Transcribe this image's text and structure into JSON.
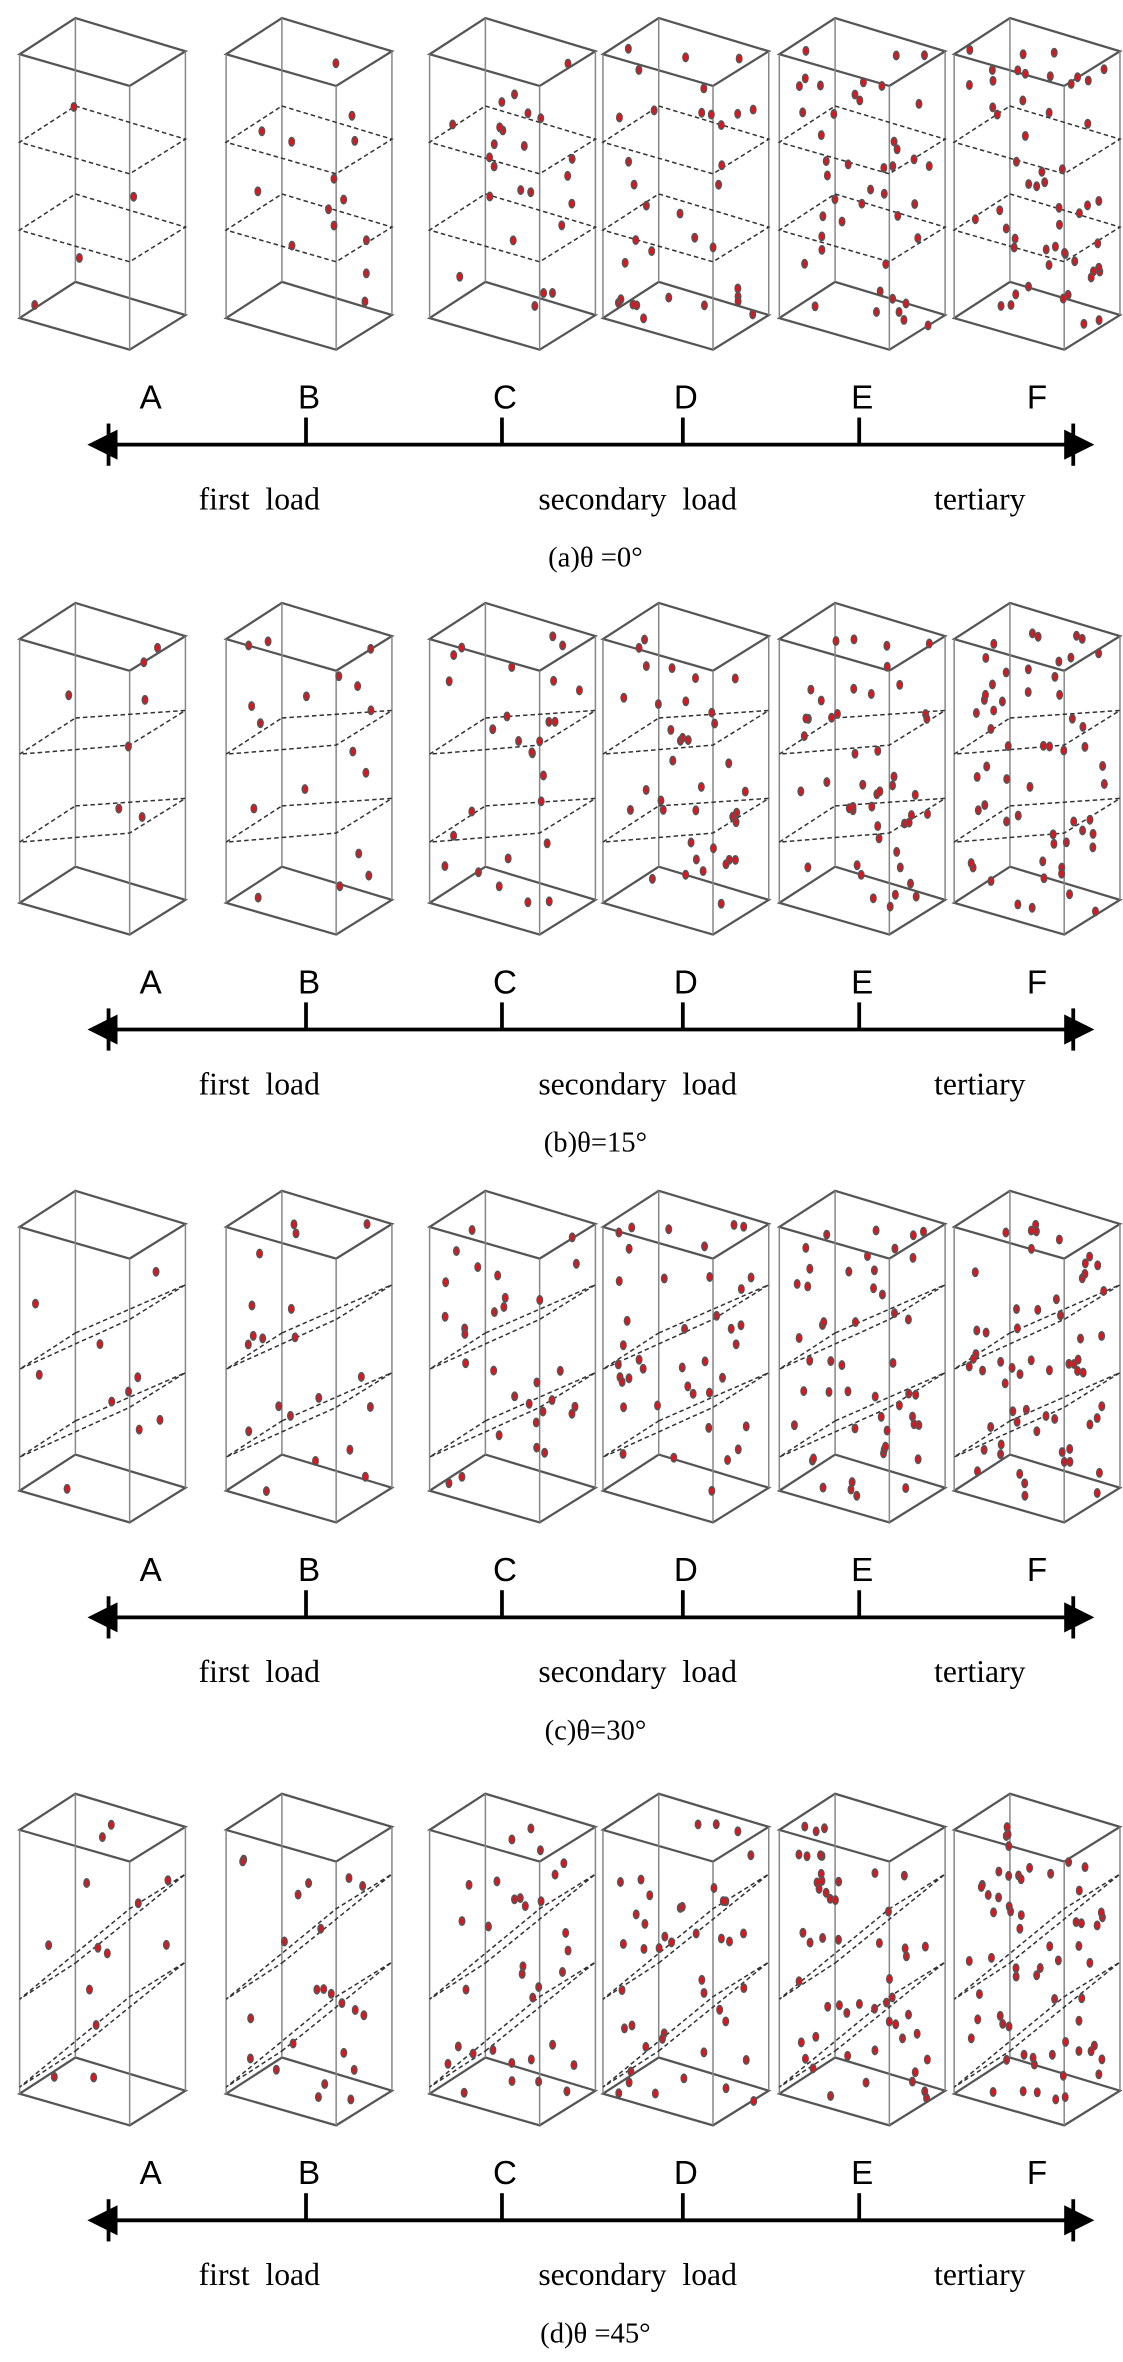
{
  "panels": [
    {
      "labels": [
        "A",
        "B",
        "C",
        "D",
        "E",
        "F"
      ],
      "stages": [
        "first  load",
        "secondary  load",
        "tertiary"
      ],
      "caption": "(a)θ =0°"
    },
    {
      "labels": [
        "A",
        "B",
        "C",
        "D",
        "E",
        "F"
      ],
      "stages": [
        "first  load",
        "secondary  load",
        "tertiary"
      ],
      "caption": "(b)θ=15°"
    },
    {
      "labels": [
        "A",
        "B",
        "C",
        "D",
        "E",
        "F"
      ],
      "stages": [
        "first  load",
        "secondary  load",
        "tertiary"
      ],
      "caption": "(c)θ=30°"
    },
    {
      "labels": [
        "A",
        "B",
        "C",
        "D",
        "E",
        "F"
      ],
      "stages": [
        "first  load",
        "secondary  load",
        "tertiary"
      ],
      "caption": "(d)θ =45°"
    }
  ]
}
